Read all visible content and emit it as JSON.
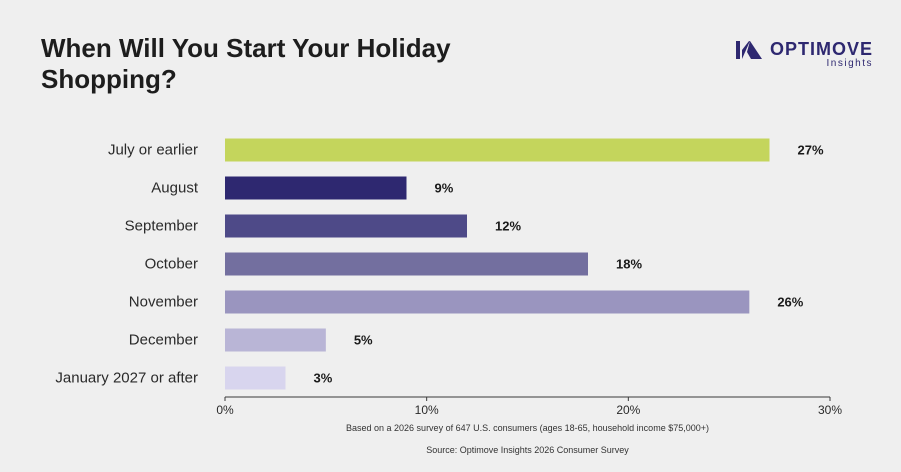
{
  "title": "When Will You Start Your Holiday Shopping?",
  "logo": {
    "brand": "OPTIMOVE",
    "sub": "Insights",
    "icon": "optimove-logo-icon",
    "color": "#2e2870"
  },
  "footnote": "Based on a 2026 survey of 647 U.S. consumers (ages 18-65, household income $75,000+)",
  "source": "Source: Optimove Insights 2026 Consumer Survey",
  "chart_data": {
    "type": "bar",
    "orientation": "horizontal",
    "categories": [
      "July or earlier",
      "August",
      "September",
      "October",
      "November",
      "December",
      "January 2027 or after"
    ],
    "values": [
      27,
      9,
      12,
      18,
      26,
      5,
      3
    ],
    "value_labels": [
      "27%",
      "9%",
      "12%",
      "18%",
      "26%",
      "5%",
      "3%"
    ],
    "colors": [
      "#c4d55c",
      "#2e2870",
      "#4e4a88",
      "#736f9f",
      "#9a95bf",
      "#b9b5d6",
      "#d8d5ee"
    ],
    "xlim": [
      0,
      30
    ],
    "xticks": [
      "0%",
      "10%",
      "20%",
      "30%"
    ],
    "grid": false,
    "legend": "none"
  }
}
